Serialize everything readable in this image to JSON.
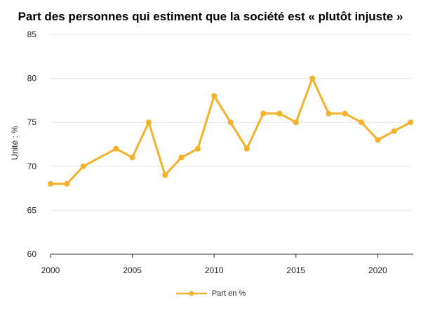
{
  "chart_data": {
    "type": "line",
    "title": "Part des personnes qui estiment que la société est « plutôt injuste »",
    "ylabel": "Unité : %",
    "xlabel": "",
    "ylim": [
      60,
      85
    ],
    "xlim": [
      2000,
      2022
    ],
    "yticks": [
      60,
      65,
      70,
      75,
      80,
      85
    ],
    "xticks": [
      2000,
      2005,
      2010,
      2015,
      2020
    ],
    "grid": true,
    "legend_position": "bottom",
    "series": [
      {
        "name": "Part en %",
        "color": "#f5b129",
        "x": [
          2000,
          2001,
          2002,
          2004,
          2005,
          2006,
          2007,
          2008,
          2009,
          2010,
          2011,
          2012,
          2013,
          2014,
          2015,
          2016,
          2017,
          2018,
          2019,
          2020,
          2021,
          2022
        ],
        "y": [
          68,
          68,
          70,
          72,
          71,
          75,
          69,
          71,
          72,
          78,
          75,
          72,
          76,
          76,
          75,
          80,
          76,
          76,
          75,
          73,
          74,
          75
        ]
      }
    ]
  }
}
